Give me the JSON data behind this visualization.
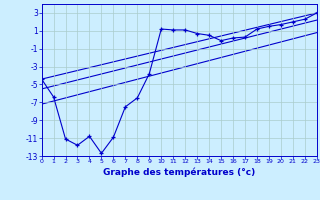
{
  "title": "Graphe des températures (°c)",
  "bg_color": "#cceeff",
  "grid_color": "#aacccc",
  "line_color": "#0000cc",
  "xlim": [
    0,
    23
  ],
  "ylim": [
    -13,
    4
  ],
  "xticks": [
    0,
    1,
    2,
    3,
    4,
    5,
    6,
    7,
    8,
    9,
    10,
    11,
    12,
    13,
    14,
    15,
    16,
    17,
    18,
    19,
    20,
    21,
    22,
    23
  ],
  "yticks": [
    3,
    1,
    -1,
    -3,
    -5,
    -7,
    -9,
    -11,
    -13
  ],
  "scatter_x": [
    0,
    1,
    2,
    3,
    4,
    5,
    6,
    7,
    8,
    9,
    10,
    11,
    12,
    13,
    14,
    15,
    16,
    17,
    18,
    19,
    20,
    21,
    22,
    23
  ],
  "scatter_y": [
    -4.4,
    -6.4,
    -11.1,
    -11.8,
    -10.8,
    -12.7,
    -10.9,
    -7.5,
    -6.5,
    -3.8,
    1.2,
    1.1,
    1.1,
    0.7,
    0.5,
    -0.1,
    0.2,
    0.3,
    1.2,
    1.5,
    1.7,
    2.0,
    2.3,
    3.0
  ],
  "line1_x": [
    0,
    23
  ],
  "line1_y": [
    -4.4,
    3.0
  ],
  "line2_x": [
    0,
    23
  ],
  "line2_y": [
    -5.5,
    2.2
  ],
  "line3_x": [
    0,
    23
  ],
  "line3_y": [
    -7.2,
    0.8
  ]
}
